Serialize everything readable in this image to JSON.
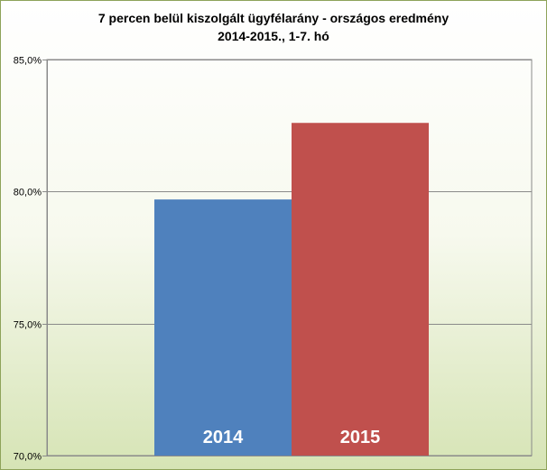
{
  "chart_data": {
    "type": "bar",
    "title": "7 percen belül kiszolgált ügyfélarány - országos eredmény",
    "subtitle": "2014-2015., 1-7. hó",
    "categories": [
      "2014",
      "2015"
    ],
    "values": [
      79.7,
      82.6
    ],
    "colors": [
      "#4f81bd",
      "#c0504d"
    ],
    "ylim": [
      70.0,
      85.0
    ],
    "yticks": [
      70.0,
      75.0,
      80.0,
      85.0
    ],
    "ytick_labels": [
      "70,0%",
      "75,0%",
      "80,0%",
      "85,0%"
    ],
    "grid": true,
    "legend": false,
    "bar_labels_inside": true
  }
}
